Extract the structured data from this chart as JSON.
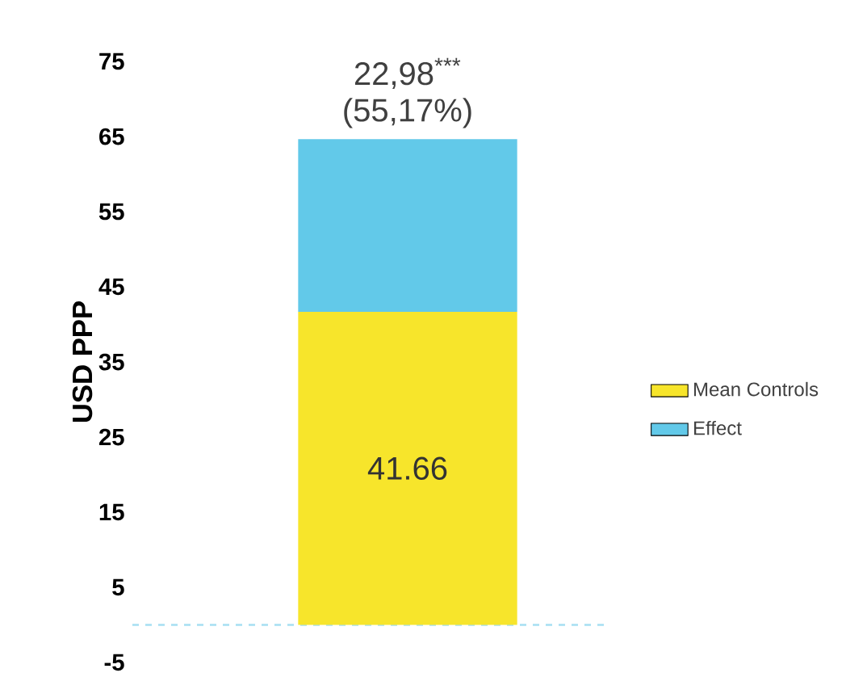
{
  "chart_data": {
    "type": "bar",
    "stacked": true,
    "categories": [
      null
    ],
    "ylabel": "USD PPP",
    "ylim": [
      -5,
      75
    ],
    "yticks": [
      -5,
      5,
      15,
      25,
      35,
      45,
      55,
      65,
      75
    ],
    "series": [
      {
        "name": "Mean Controls",
        "color": "#f7e52b",
        "values": [
          41.66
        ],
        "value_labels": [
          "41.66"
        ]
      },
      {
        "name": "Effect",
        "color": "#62c9e9",
        "values": [
          22.98
        ],
        "value_labels": [
          "22,98$^{***}$"
        ]
      }
    ],
    "annotations": [
      "(55,17%)"
    ],
    "ref_lines": [
      {
        "axis": "y",
        "value": 0,
        "color": "#a6dff2",
        "line_style": "dashed"
      }
    ],
    "grid": false,
    "legend": "right"
  }
}
